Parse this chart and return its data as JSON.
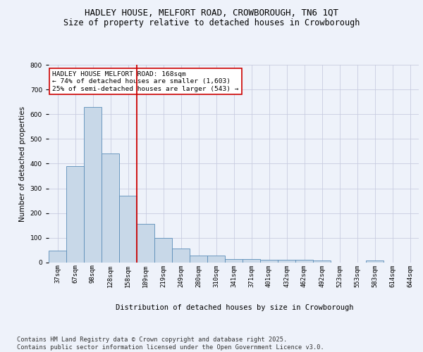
{
  "title": "HADLEY HOUSE, MELFORT ROAD, CROWBOROUGH, TN6 1QT",
  "subtitle": "Size of property relative to detached houses in Crowborough",
  "xlabel": "Distribution of detached houses by size in Crowborough",
  "ylabel": "Number of detached properties",
  "categories": [
    "37sqm",
    "67sqm",
    "98sqm",
    "128sqm",
    "158sqm",
    "189sqm",
    "219sqm",
    "249sqm",
    "280sqm",
    "310sqm",
    "341sqm",
    "371sqm",
    "401sqm",
    "432sqm",
    "462sqm",
    "492sqm",
    "523sqm",
    "553sqm",
    "583sqm",
    "614sqm",
    "644sqm"
  ],
  "values": [
    48,
    390,
    630,
    440,
    270,
    155,
    98,
    55,
    28,
    28,
    14,
    12,
    10,
    10,
    10,
    8,
    0,
    0,
    7,
    0,
    0
  ],
  "bar_color": "#c8d8e8",
  "bar_edgecolor": "#5b8db8",
  "background_color": "#eef2fa",
  "grid_color": "#c8cce0",
  "vline_x": 4.5,
  "vline_color": "#cc0000",
  "annotation_text": "HADLEY HOUSE MELFORT ROAD: 168sqm\n← 74% of detached houses are smaller (1,603)\n25% of semi-detached houses are larger (543) →",
  "annotation_box_edgecolor": "#cc0000",
  "ylim": [
    0,
    800
  ],
  "yticks": [
    0,
    100,
    200,
    300,
    400,
    500,
    600,
    700,
    800
  ],
  "footer_text": "Contains HM Land Registry data © Crown copyright and database right 2025.\nContains public sector information licensed under the Open Government Licence v3.0.",
  "title_fontsize": 9,
  "subtitle_fontsize": 8.5,
  "axis_label_fontsize": 7.5,
  "tick_fontsize": 6.5,
  "annotation_fontsize": 6.8,
  "footer_fontsize": 6.2
}
